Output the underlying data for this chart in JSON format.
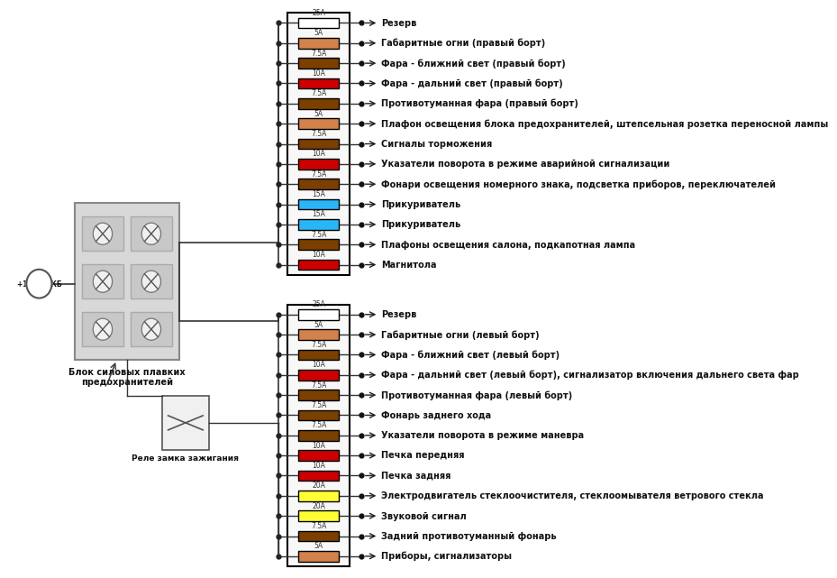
{
  "bg_color": "#ffffff",
  "fuse_box1": {
    "fuses": [
      {
        "label": "25A",
        "color": "#ffffff"
      },
      {
        "label": "5A",
        "color": "#D2824A"
      },
      {
        "label": "7.5A",
        "color": "#7B3F00"
      },
      {
        "label": "10A",
        "color": "#CC0000"
      },
      {
        "label": "7.5A",
        "color": "#7B3F00"
      },
      {
        "label": "5A",
        "color": "#D2824A"
      },
      {
        "label": "7.5A",
        "color": "#7B3F00"
      },
      {
        "label": "10A",
        "color": "#CC0000"
      },
      {
        "label": "7.5A",
        "color": "#7B3F00"
      },
      {
        "label": "15A",
        "color": "#29B6F6"
      },
      {
        "label": "15A",
        "color": "#29B6F6"
      },
      {
        "label": "7.5A",
        "color": "#7B3F00"
      },
      {
        "label": "10A",
        "color": "#CC0000"
      }
    ],
    "labels": [
      "Резерв",
      "Габаритные огни (правый борт)",
      "Фара - ближний свет (правый борт)",
      "Фара - дальний свет (правый борт)",
      "Противотуманная фара (правый борт)",
      "Плафон освещения блока предохранителей, штепсельная розетка переносной лампы",
      "Сигналы торможения",
      "Указатели поворота в режиме аварийной сигнализации",
      "Фонари освещения номерного знака, подсветка приборов, переключателей",
      "Прикуриватель",
      "Прикуриватель",
      "Плафоны освещения салона, подкапотная лампа",
      "Магнитола"
    ]
  },
  "fuse_box2": {
    "fuses": [
      {
        "label": "25A",
        "color": "#ffffff"
      },
      {
        "label": "5A",
        "color": "#D2824A"
      },
      {
        "label": "7.5A",
        "color": "#7B3F00"
      },
      {
        "label": "10A",
        "color": "#CC0000"
      },
      {
        "label": "7.5A",
        "color": "#7B3F00"
      },
      {
        "label": "7.5A",
        "color": "#7B3F00"
      },
      {
        "label": "7.5A",
        "color": "#7B3F00"
      },
      {
        "label": "10A",
        "color": "#CC0000"
      },
      {
        "label": "10A",
        "color": "#CC0000"
      },
      {
        "label": "20A",
        "color": "#FFFF33"
      },
      {
        "label": "20A",
        "color": "#FFFF33"
      },
      {
        "label": "7.5A",
        "color": "#7B3F00"
      },
      {
        "label": "5A",
        "color": "#D2824A"
      }
    ],
    "labels": [
      "Резерв",
      "Габаритные огни (левый борт)",
      "Фара - ближний свет (левый борт)",
      "Фара - дальний свет (левый борт), сигнализатор включения дальнего света фар",
      "Противотуманная фара (левый борт)",
      "Фонарь заднего хода",
      "Указатели поворота в режиме маневра",
      "Печка передняя",
      "Печка задняя",
      "Электродвигатель стеклоочистителя, стеклоомывателя ветрового стекла",
      "Звуковой сигнал",
      "Задний противотуманный фонарь",
      "Приборы, сигнализаторы"
    ]
  },
  "left_box_label": "Блок силовых плавких\nпредохранителей",
  "relay_label": "Реле замка зажигания",
  "akb_label": "+12 от АКБ"
}
